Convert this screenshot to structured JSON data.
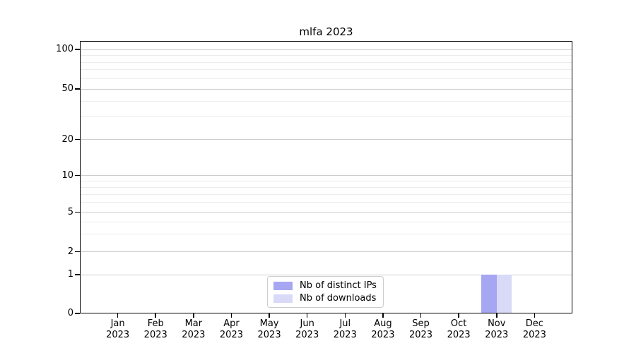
{
  "chart_data": {
    "type": "bar",
    "title": "mlfa 2023",
    "categories": [
      "Jan 2023",
      "Feb 2023",
      "Mar 2023",
      "Apr 2023",
      "May 2023",
      "Jun 2023",
      "Jul 2023",
      "Aug 2023",
      "Sep 2023",
      "Oct 2023",
      "Nov 2023",
      "Dec 2023"
    ],
    "series": [
      {
        "name": "Nb of distinct IPs",
        "color": "#a6a6f2",
        "values": [
          0,
          0,
          0,
          0,
          0,
          0,
          0,
          0,
          0,
          0,
          1,
          0
        ]
      },
      {
        "name": "Nb of downloads",
        "color": "#d9d9f8",
        "values": [
          0,
          0,
          0,
          0,
          0,
          0,
          0,
          0,
          0,
          0,
          1,
          0
        ]
      }
    ],
    "xlabel": "",
    "ylabel": "",
    "y_axis": {
      "scale": "symlog",
      "ticks": [
        0,
        1,
        2,
        5,
        10,
        20,
        50,
        100
      ],
      "minor_gridline_values": [
        3,
        4,
        6,
        7,
        8,
        9,
        30,
        40,
        60,
        70,
        80,
        90
      ],
      "range": [
        0,
        110
      ]
    },
    "grid": {
      "horizontal": true,
      "vertical": false,
      "major_color": "#cccccc",
      "minor_color": "#ececec"
    },
    "legend": {
      "position": "lower center",
      "items": [
        "Nb of distinct IPs",
        "Nb of downloads"
      ]
    },
    "colors": {
      "spine": "#000000",
      "background": "#ffffff",
      "text": "#000000"
    }
  }
}
